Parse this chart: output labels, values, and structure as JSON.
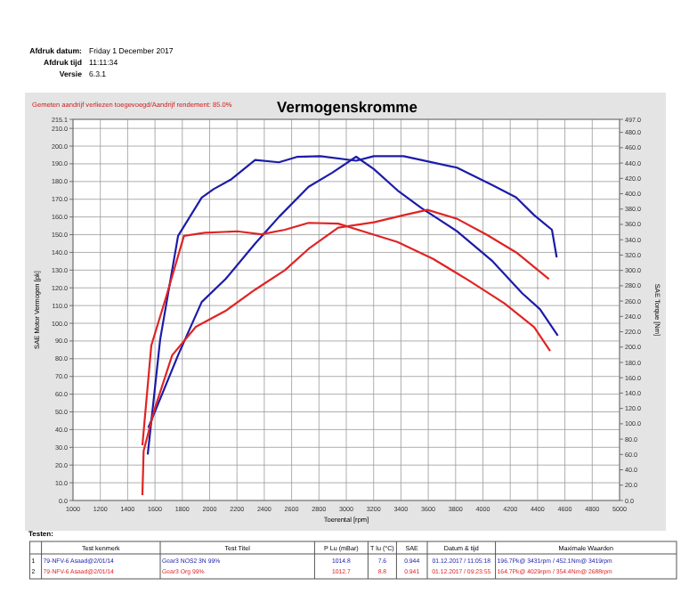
{
  "chart_data": {
    "type": "line",
    "title": "Vermogenskromme",
    "subtitle": "Gemeten aandrijf verliezen toegevoegd/Aandrijf rendement: 85.0%",
    "xlabel": "Toerental [rpm]",
    "ylabel": "SAE Motor Vermogen [pk]",
    "y2label": "SAE Torque [Nm]",
    "xlim": [
      1000,
      5000
    ],
    "xticks": [
      1000,
      1200,
      1400,
      1600,
      1800,
      2000,
      2200,
      2400,
      2600,
      2800,
      3000,
      3200,
      3400,
      3600,
      3800,
      4000,
      4200,
      4400,
      4600,
      4800,
      5000
    ],
    "ylim": [
      0,
      215.1
    ],
    "yticks": [
      {
        "value": 0,
        "label": "0.0"
      },
      {
        "value": 10,
        "label": "10.0"
      },
      {
        "value": 20,
        "label": "20.0"
      },
      {
        "value": 30,
        "label": "30.0"
      },
      {
        "value": 40,
        "label": "40.0"
      },
      {
        "value": 50,
        "label": "50.0"
      },
      {
        "value": 60,
        "label": "60.0"
      },
      {
        "value": 70,
        "label": "70.0"
      },
      {
        "value": 80,
        "label": "80.0"
      },
      {
        "value": 90,
        "label": "90.0"
      },
      {
        "value": 100,
        "label": "100.0"
      },
      {
        "value": 110,
        "label": "110.0"
      },
      {
        "value": 120,
        "label": "120.0"
      },
      {
        "value": 130,
        "label": "130.0"
      },
      {
        "value": 140,
        "label": "140.0"
      },
      {
        "value": 150,
        "label": "150.0"
      },
      {
        "value": 160,
        "label": "160.0"
      },
      {
        "value": 170,
        "label": "170.0"
      },
      {
        "value": 180,
        "label": "180.0"
      },
      {
        "value": 190,
        "label": "190.0"
      },
      {
        "value": 200,
        "label": "200.0"
      },
      {
        "value": 210,
        "label": "210.0"
      },
      {
        "value": 215.1,
        "label": "215.1"
      }
    ],
    "y2lim": [
      0,
      497
    ],
    "y2ticks": [
      {
        "value": 0,
        "label": "0.0"
      },
      {
        "value": 20,
        "label": "20.0"
      },
      {
        "value": 40,
        "label": "40.0"
      },
      {
        "value": 60,
        "label": "60.0"
      },
      {
        "value": 80,
        "label": "80.0"
      },
      {
        "value": 100,
        "label": "100.0"
      },
      {
        "value": 120,
        "label": "120.0"
      },
      {
        "value": 140,
        "label": "140.0"
      },
      {
        "value": 160,
        "label": "160.0"
      },
      {
        "value": 180,
        "label": "180.0"
      },
      {
        "value": 200,
        "label": "200.0"
      },
      {
        "value": 220,
        "label": "220.0"
      },
      {
        "value": 240,
        "label": "240.0"
      },
      {
        "value": 260,
        "label": "260.0"
      },
      {
        "value": 280,
        "label": "280.0"
      },
      {
        "value": 300,
        "label": "300.0"
      },
      {
        "value": 320,
        "label": "320.0"
      },
      {
        "value": 340,
        "label": "340.0"
      },
      {
        "value": 360,
        "label": "360.0"
      },
      {
        "value": 380,
        "label": "380.0"
      },
      {
        "value": 400,
        "label": "400.0"
      },
      {
        "value": 420,
        "label": "420.0"
      },
      {
        "value": 440,
        "label": "440.0"
      },
      {
        "value": 460,
        "label": "460.0"
      },
      {
        "value": 480,
        "label": "480.0"
      },
      {
        "value": 497,
        "label": "497.0"
      }
    ],
    "grid": true,
    "marker": "none",
    "line_style": "solid",
    "series": [
      {
        "color": "#1c1ca8",
        "x": [
          1551,
          1769,
          1942,
          2117,
          2333,
          2507,
          2724,
          2898,
          3072,
          3202,
          3375,
          3550,
          3810,
          4071,
          4287,
          4417,
          4548
        ],
        "values": [
          41,
          82,
          112,
          125,
          145,
          160,
          177,
          185,
          194,
          187,
          175,
          165,
          152,
          135,
          117,
          108,
          93
        ]
      },
      {
        "color": "#1c1ca8",
        "axis": "y2",
        "x": [
          1547,
          1638,
          1769,
          1942,
          2029,
          2160,
          2333,
          2507,
          2638,
          2811,
          3072,
          3202,
          3420,
          3810,
          4071,
          4244,
          4375,
          4505,
          4540
        ],
        "values": [
          60,
          210,
          345,
          395,
          406,
          419,
          444,
          441,
          448,
          449,
          443,
          449,
          449,
          434,
          411,
          395,
          372,
          353,
          317
        ]
      },
      {
        "color": "#e02424",
        "x": [
          1508,
          1517,
          1595,
          1726,
          1899,
          2117,
          2333,
          2551,
          2724,
          2941,
          3202,
          3420,
          3593,
          3810,
          4027,
          4244,
          4483
        ],
        "values": [
          3,
          28,
          51,
          82,
          98,
          107,
          119,
          130,
          142,
          154,
          157,
          161,
          164,
          159,
          150,
          140,
          125
        ]
      },
      {
        "color": "#e02424",
        "axis": "y2",
        "x": [
          1508,
          1573,
          1681,
          1812,
          1964,
          2203,
          2377,
          2551,
          2724,
          2941,
          3159,
          3375,
          3636,
          3896,
          4157,
          4375,
          4492
        ],
        "values": [
          72,
          202,
          265,
          345,
          349,
          351,
          347,
          353,
          362,
          361,
          349,
          337,
          315,
          287,
          257,
          226,
          195
        ]
      }
    ],
    "annotations": [
      "Afdruk datum:",
      "Friday 1 December 2017",
      "Afdruk tijd",
      "11:11:34",
      "Versie",
      "6.3.1",
      "Testen:",
      "Test kenmerk",
      "Test Titel",
      "P Lu (mBar)",
      "T lu (°C)",
      "SAE",
      "Datum & tijd",
      "Maximale Waarden",
      "1",
      "79-NFV-6 Asaad@2/01/14",
      "Gear3 NOS2 3N 99%",
      "1014.8",
      "7.6",
      "0.944",
      "01.12.2017 / 11:05:18",
      "196.7Pk@ 3431rpm / 452.1Nm@ 3419rpm",
      "2",
      "79-NFV-6 Asaad@2/01/14",
      "Gear3 Org 99%",
      "1012.7",
      "8.8",
      "0.941",
      "01.12.2017 / 09:23:55",
      "164.7Pk@ 4029rpm / 354.4Nm@ 2688rpm"
    ]
  }
}
